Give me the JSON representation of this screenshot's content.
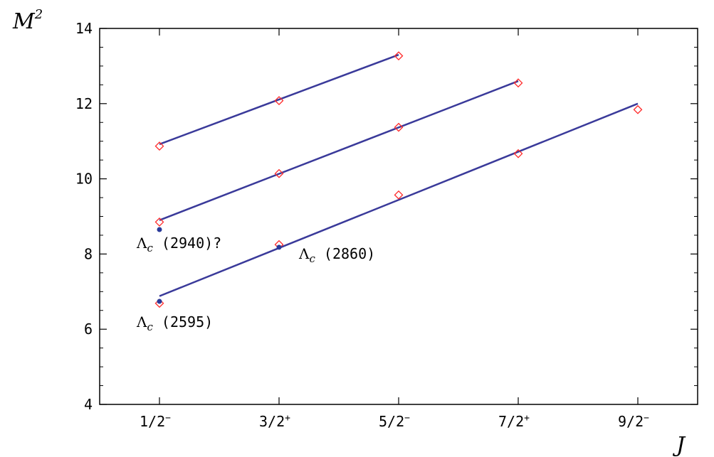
{
  "chart_data": {
    "type": "scatter",
    "xlabel": "J",
    "ylabel": "M",
    "ylabel_sup": "2",
    "categories": [
      {
        "base": "1/2",
        "parity": "−"
      },
      {
        "base": "3/2",
        "parity": "+"
      },
      {
        "base": "5/2",
        "parity": "−"
      },
      {
        "base": "7/2",
        "parity": "+"
      },
      {
        "base": "9/2",
        "parity": "−"
      }
    ],
    "xlim": [
      0.5,
      5.5
    ],
    "ylim": [
      4,
      14
    ],
    "yticks": [
      4,
      6,
      8,
      10,
      12,
      14
    ],
    "grid": false,
    "colors": {
      "line": "#3a3a9a",
      "theory": "#ff2a2a",
      "experiment": "#2a3a9a"
    },
    "series": [
      {
        "role": "trajectory",
        "line": [
          [
            1,
            10.92
          ],
          [
            3,
            13.3
          ]
        ],
        "points": [
          [
            1,
            10.87
          ],
          [
            2,
            12.08
          ],
          [
            3,
            13.27
          ]
        ]
      },
      {
        "role": "trajectory",
        "line": [
          [
            1,
            8.9
          ],
          [
            4,
            12.6
          ]
        ],
        "points": [
          [
            1,
            8.85
          ],
          [
            2,
            10.14
          ],
          [
            3,
            11.37
          ],
          [
            4,
            12.55
          ]
        ]
      },
      {
        "role": "trajectory",
        "line": [
          [
            1,
            6.88
          ],
          [
            5,
            12.0
          ]
        ],
        "points": [
          [
            1,
            6.69
          ],
          [
            2,
            8.25
          ],
          [
            3,
            9.57
          ],
          [
            4,
            10.67
          ],
          [
            5,
            11.84
          ]
        ]
      }
    ],
    "experimental": [
      {
        "x": 1,
        "y": 6.74,
        "label": {
          "sym": "Λ",
          "sub": "c",
          "text": " (2595)"
        }
      },
      {
        "x": 1,
        "y": 8.65,
        "label": {
          "sym": "Λ",
          "sub": "c",
          "text": " (2940)?"
        }
      },
      {
        "x": 2,
        "y": 8.18,
        "label": {
          "sym": "Λ",
          "sub": "c",
          "text": " (2860)"
        }
      }
    ]
  }
}
